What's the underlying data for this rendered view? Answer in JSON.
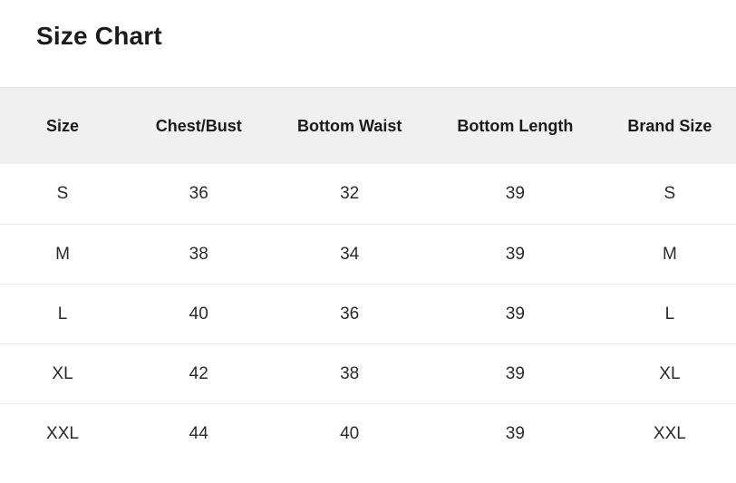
{
  "page": {
    "title": "Size Chart"
  },
  "table": {
    "columns": [
      "Size",
      "Chest/Bust",
      "Bottom Waist",
      "Bottom Length",
      "Brand Size"
    ],
    "rows": [
      [
        "S",
        "36",
        "32",
        "39",
        "S"
      ],
      [
        "M",
        "38",
        "34",
        "39",
        "M"
      ],
      [
        "L",
        "40",
        "36",
        "39",
        "L"
      ],
      [
        "XL",
        "42",
        "38",
        "39",
        "XL"
      ],
      [
        "XXL",
        "44",
        "40",
        "39",
        "XXL"
      ]
    ]
  },
  "chart_data": {
    "type": "table",
    "title": "Size Chart",
    "columns": [
      "Size",
      "Chest/Bust",
      "Bottom Waist",
      "Bottom Length",
      "Brand Size"
    ],
    "rows": [
      [
        "S",
        36,
        32,
        39,
        "S"
      ],
      [
        "M",
        38,
        34,
        39,
        "M"
      ],
      [
        "L",
        40,
        36,
        39,
        "L"
      ],
      [
        "XL",
        42,
        38,
        39,
        "XL"
      ],
      [
        "XXL",
        44,
        40,
        39,
        "XXL"
      ]
    ]
  },
  "colors": {
    "header_background": "#f0f0f0",
    "row_divider": "#e9e9e9",
    "text": "#2a2a2e",
    "heading_text": "#1b1b1d"
  }
}
